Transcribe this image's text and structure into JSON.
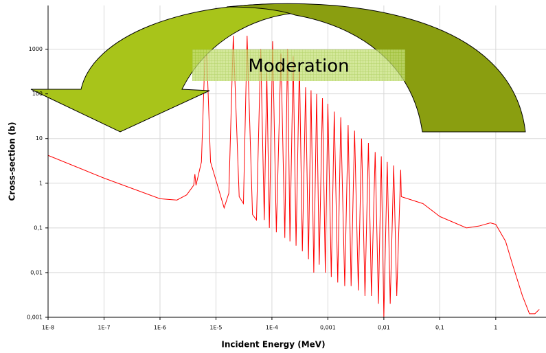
{
  "chart_data": {
    "type": "line",
    "annotation": "Moderation",
    "xlabel": "Incident Energy (MeV)",
    "ylabel": "Cross-section (b)",
    "log_x": true,
    "log_y": true,
    "grid": true,
    "color": "#ff0000",
    "xlim": [
      1e-08,
      7.9
    ],
    "ylim": [
      0.001,
      9500
    ],
    "xticks": [
      {
        "value": 1e-08,
        "label": "1E-8"
      },
      {
        "value": 1e-07,
        "label": "1E-7"
      },
      {
        "value": 1e-06,
        "label": "1E-6"
      },
      {
        "value": 1e-05,
        "label": "1E-5"
      },
      {
        "value": 0.0001,
        "label": "1E-4"
      },
      {
        "value": 0.001,
        "label": "0,001"
      },
      {
        "value": 0.01,
        "label": "0,01"
      },
      {
        "value": 0.1,
        "label": "0,1"
      },
      1
    ],
    "yticks": [
      {
        "value": 0.001,
        "label": "0,001"
      },
      {
        "value": 0.01,
        "label": "0,01"
      },
      {
        "value": 0.1,
        "label": "0,1"
      },
      1,
      10,
      100,
      1000
    ],
    "x": [
      1e-08,
      1e-07,
      1e-06,
      2e-06,
      3e-06,
      4e-06,
      4.2e-06,
      4.4e-06,
      5.5e-06,
      6.6e-06,
      8e-06,
      1.4e-05,
      1.7e-05,
      2.04e-05,
      2.6e-05,
      3.1e-05,
      3.6e-05,
      4.5e-05,
      5.3e-05,
      6.3e-05,
      7.3e-05,
      8.1e-05,
      9e-05,
      0.000103,
      0.00012,
      0.000145,
      0.00017,
      0.00019,
      0.00021,
      0.00024,
      0.00027,
      0.00031,
      0.00035,
      0.0004,
      0.00045,
      0.0005,
      0.00056,
      0.00063,
      0.0007,
      0.0008,
      0.0009,
      0.001,
      0.00115,
      0.0013,
      0.0015,
      0.0017,
      0.002,
      0.0023,
      0.0026,
      0.003,
      0.0035,
      0.004,
      0.0046,
      0.0053,
      0.006,
      0.007,
      0.008,
      0.009,
      0.01,
      0.0115,
      0.013,
      0.015,
      0.017,
      0.02,
      0.0205,
      0.05,
      0.1,
      0.3,
      0.5,
      0.8,
      1,
      1.5,
      2,
      3,
      4,
      5,
      6
    ],
    "values": [
      4.2,
      1.3,
      0.45,
      0.42,
      0.55,
      0.9,
      1.6,
      0.9,
      3,
      3000,
      3,
      0.28,
      0.6,
      2000,
      0.5,
      0.35,
      2000,
      0.2,
      0.15,
      1000,
      0.15,
      300,
      0.1,
      1500,
      0.08,
      800,
      0.06,
      1000,
      0.05,
      700,
      0.04,
      500,
      0.03,
      140,
      0.02,
      120,
      0.01,
      100,
      0.015,
      80,
      0.01,
      60,
      0.008,
      40,
      0.006,
      30,
      0.005,
      20,
      0.005,
      15,
      0.004,
      10,
      0.003,
      8,
      0.003,
      5,
      0.002,
      4,
      0.001,
      3,
      0.002,
      2.5,
      0.003,
      2,
      0.5,
      0.35,
      0.18,
      0.1,
      0.11,
      0.13,
      0.12,
      0.05,
      0.015,
      0.003,
      0.0012,
      0.0012,
      0.0015
    ]
  }
}
